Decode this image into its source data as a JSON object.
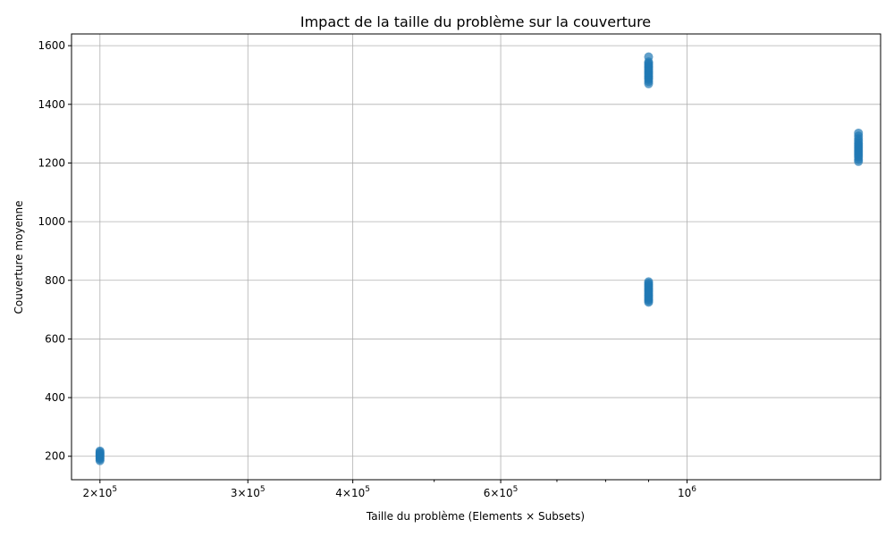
{
  "chart_data": {
    "type": "scatter",
    "title": "Impact de la taille du problème sur la couverture",
    "xlabel": "Taille du problème (Elements × Subsets)",
    "ylabel": "Couverture moyenne",
    "x_scale": "log",
    "xlim": [
      185000,
      1700000
    ],
    "ylim": [
      120,
      1640
    ],
    "grid": true,
    "color": "#1f77b4",
    "x_ticks": [
      {
        "value": 200000,
        "mantissa": "2",
        "base": "10",
        "exp": "5"
      },
      {
        "value": 300000,
        "mantissa": "3",
        "base": "10",
        "exp": "5"
      },
      {
        "value": 400000,
        "mantissa": "4",
        "base": "10",
        "exp": "5"
      },
      {
        "value": 600000,
        "mantissa": "6",
        "base": "10",
        "exp": "5"
      },
      {
        "value": 1000000,
        "mantissa": "",
        "base": "10",
        "exp": "6"
      }
    ],
    "x_minor_ticks": [
      500000,
      700000,
      800000,
      900000
    ],
    "y_ticks": [
      200,
      400,
      600,
      800,
      1000,
      1200,
      1400,
      1600
    ],
    "y_tick_labels": [
      "200",
      "400",
      "600",
      "800",
      "1000",
      "1200",
      "1400",
      "1600"
    ],
    "series": [
      {
        "points": [
          {
            "x": 200000,
            "y": 185
          },
          {
            "x": 200000,
            "y": 190
          },
          {
            "x": 200000,
            "y": 194
          },
          {
            "x": 200000,
            "y": 198
          },
          {
            "x": 200000,
            "y": 202
          },
          {
            "x": 200000,
            "y": 206
          },
          {
            "x": 200000,
            "y": 210
          },
          {
            "x": 200000,
            "y": 214
          },
          {
            "x": 200000,
            "y": 218
          },
          {
            "x": 900000,
            "y": 725
          },
          {
            "x": 900000,
            "y": 730
          },
          {
            "x": 900000,
            "y": 735
          },
          {
            "x": 900000,
            "y": 740
          },
          {
            "x": 900000,
            "y": 745
          },
          {
            "x": 900000,
            "y": 750
          },
          {
            "x": 900000,
            "y": 755
          },
          {
            "x": 900000,
            "y": 760
          },
          {
            "x": 900000,
            "y": 765
          },
          {
            "x": 900000,
            "y": 770
          },
          {
            "x": 900000,
            "y": 775
          },
          {
            "x": 900000,
            "y": 780
          },
          {
            "x": 900000,
            "y": 785
          },
          {
            "x": 900000,
            "y": 790
          },
          {
            "x": 900000,
            "y": 795
          },
          {
            "x": 900000,
            "y": 1470
          },
          {
            "x": 900000,
            "y": 1478
          },
          {
            "x": 900000,
            "y": 1485
          },
          {
            "x": 900000,
            "y": 1490
          },
          {
            "x": 900000,
            "y": 1495
          },
          {
            "x": 900000,
            "y": 1500
          },
          {
            "x": 900000,
            "y": 1505
          },
          {
            "x": 900000,
            "y": 1510
          },
          {
            "x": 900000,
            "y": 1515
          },
          {
            "x": 900000,
            "y": 1520
          },
          {
            "x": 900000,
            "y": 1525
          },
          {
            "x": 900000,
            "y": 1530
          },
          {
            "x": 900000,
            "y": 1535
          },
          {
            "x": 900000,
            "y": 1540
          },
          {
            "x": 900000,
            "y": 1545
          },
          {
            "x": 900000,
            "y": 1562
          },
          {
            "x": 1600000,
            "y": 1205
          },
          {
            "x": 1600000,
            "y": 1212
          },
          {
            "x": 1600000,
            "y": 1220
          },
          {
            "x": 1600000,
            "y": 1226
          },
          {
            "x": 1600000,
            "y": 1232
          },
          {
            "x": 1600000,
            "y": 1238
          },
          {
            "x": 1600000,
            "y": 1244
          },
          {
            "x": 1600000,
            "y": 1250
          },
          {
            "x": 1600000,
            "y": 1256
          },
          {
            "x": 1600000,
            "y": 1262
          },
          {
            "x": 1600000,
            "y": 1268
          },
          {
            "x": 1600000,
            "y": 1275
          },
          {
            "x": 1600000,
            "y": 1283
          },
          {
            "x": 1600000,
            "y": 1292
          },
          {
            "x": 1600000,
            "y": 1302
          }
        ]
      }
    ]
  }
}
